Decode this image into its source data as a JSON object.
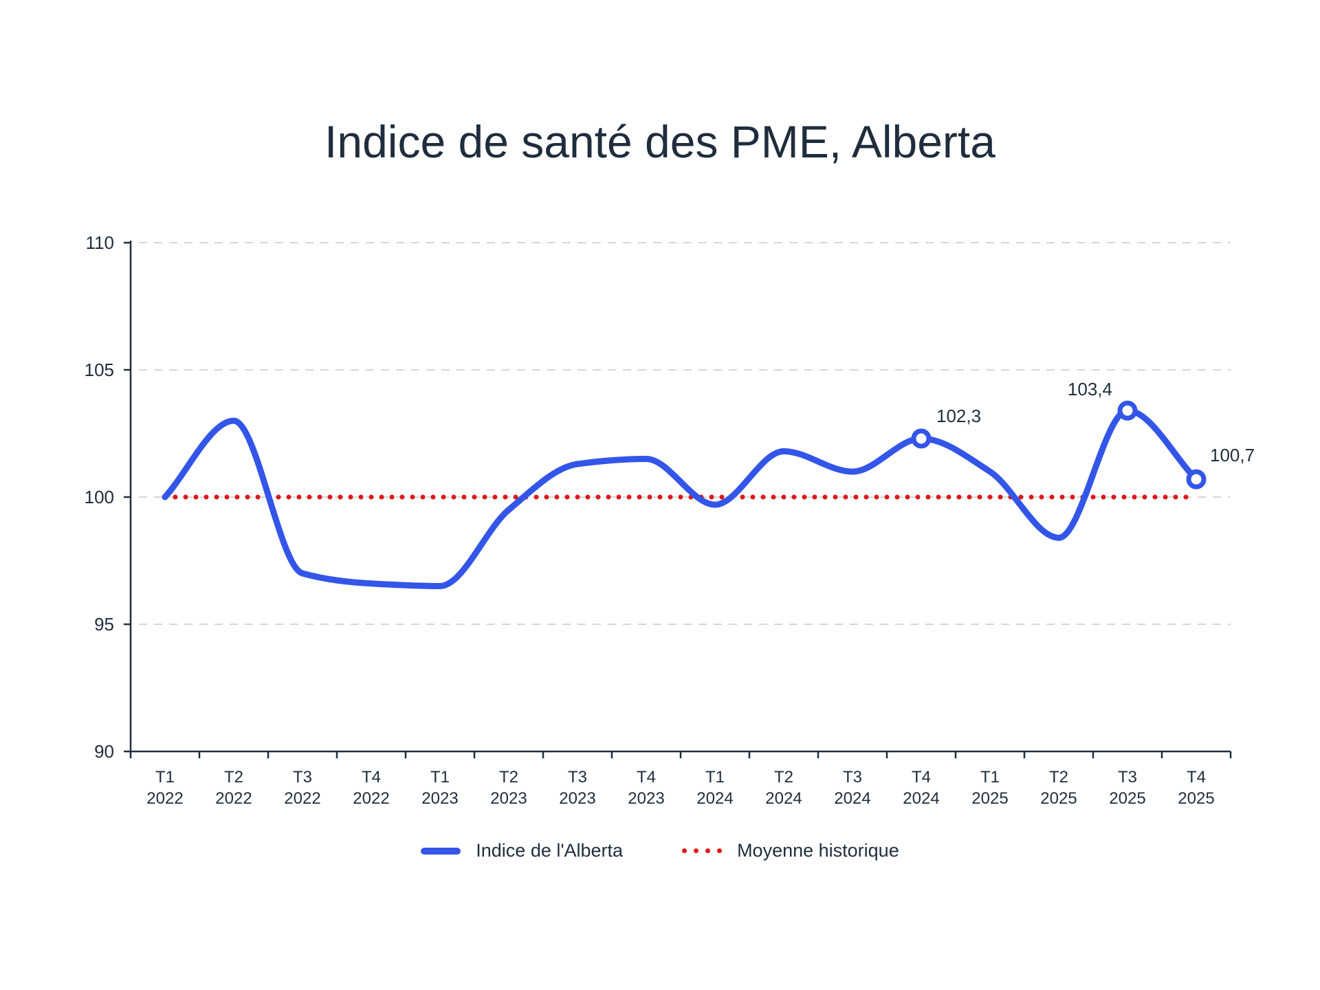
{
  "title": "Indice de santé des PME, Alberta",
  "colors": {
    "series_main": "#3355e8",
    "series_avg": "#e01818",
    "axis": "#1f2d3d",
    "grid": "#d6d6d6",
    "text": "#1f2d3d"
  },
  "legend": {
    "main_label": "Indice de l'Alberta",
    "avg_label": "Moyenne historique"
  },
  "chart_data": {
    "type": "line",
    "title": "Indice de santé des PME, Alberta",
    "xlabel": "",
    "ylabel": "",
    "ylim": [
      90,
      110
    ],
    "yticks": [
      90,
      95,
      100,
      105,
      110
    ],
    "grid": true,
    "legend_position": "bottom",
    "categories": [
      [
        "T1",
        "2022"
      ],
      [
        "T2",
        "2022"
      ],
      [
        "T3",
        "2022"
      ],
      [
        "T4",
        "2022"
      ],
      [
        "T1",
        "2023"
      ],
      [
        "T2",
        "2023"
      ],
      [
        "T3",
        "2023"
      ],
      [
        "T4",
        "2023"
      ],
      [
        "T1",
        "2024"
      ],
      [
        "T2",
        "2024"
      ],
      [
        "T3",
        "2024"
      ],
      [
        "T4",
        "2024"
      ],
      [
        "T1",
        "2025"
      ],
      [
        "T2",
        "2025"
      ],
      [
        "T3",
        "2025"
      ],
      [
        "T4",
        "2025"
      ]
    ],
    "series": [
      {
        "name": "Indice de l'Alberta",
        "style": "solid",
        "values": [
          100.0,
          103.0,
          97.0,
          96.6,
          96.5,
          99.5,
          101.3,
          101.5,
          99.7,
          101.8,
          101.0,
          102.3,
          101.0,
          98.4,
          103.4,
          100.7
        ]
      },
      {
        "name": "Moyenne historique",
        "style": "dotted",
        "values": [
          100,
          100,
          100,
          100,
          100,
          100,
          100,
          100,
          100,
          100,
          100,
          100,
          100,
          100,
          100,
          100
        ]
      }
    ],
    "annotations": [
      {
        "index": 11,
        "label": "102,3"
      },
      {
        "index": 14,
        "label": "103,4"
      },
      {
        "index": 15,
        "label": "100,7"
      }
    ]
  }
}
